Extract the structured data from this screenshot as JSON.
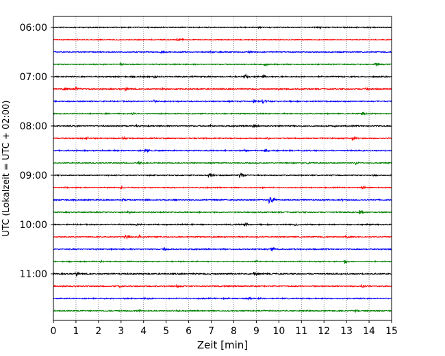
{
  "chart_data": {
    "type": "line",
    "subtype": "helicorder",
    "xlabel": "Zeit  [min]",
    "ylabel": "UTC (Lokalzeit = UTC + 02:00)",
    "xlim": [
      0,
      15
    ],
    "x_ticks": [
      "0",
      "1",
      "2",
      "3",
      "4",
      "5",
      "6",
      "7",
      "8",
      "9",
      "10",
      "11",
      "12",
      "13",
      "14",
      "15"
    ],
    "y_tick_labels": [
      "06:00",
      "07:00",
      "08:00",
      "09:00",
      "10:00",
      "11:00"
    ],
    "trace_minutes_per_line": 15,
    "start_time": "06:00",
    "trace_colors": [
      "#000000",
      "#ff0000",
      "#0000ff",
      "#008000"
    ],
    "grid": "vertical dotted at each minute",
    "traces": [
      {
        "time": "06:00",
        "color": "#000000",
        "amplitude": 0.8,
        "events": [
          {
            "x": 9.1,
            "amp": 2.5
          },
          {
            "x": 11.8,
            "amp": 2
          }
        ]
      },
      {
        "time": "06:15",
        "color": "#ff0000",
        "amplitude": 0.7,
        "events": [
          {
            "x": 5.5,
            "amp": 4.5
          }
        ]
      },
      {
        "time": "06:30",
        "color": "#0000ff",
        "amplitude": 0.8,
        "events": [
          {
            "x": 4.8,
            "amp": 2.5
          },
          {
            "x": 7,
            "amp": 2.2
          },
          {
            "x": 8.7,
            "amp": 2.5
          }
        ]
      },
      {
        "time": "06:45",
        "color": "#008000",
        "amplitude": 0.8,
        "events": [
          {
            "x": 3.0,
            "amp": 3
          },
          {
            "x": 9.4,
            "amp": 2.5
          },
          {
            "x": 14.3,
            "amp": 3.5
          }
        ]
      },
      {
        "time": "07:00",
        "color": "#000000",
        "amplitude": 1.0,
        "events": [
          {
            "x": 4.5,
            "amp": 2.5
          },
          {
            "x": 8.5,
            "amp": 3.5
          },
          {
            "x": 9.3,
            "amp": 3
          }
        ]
      },
      {
        "time": "07:15",
        "color": "#ff0000",
        "amplitude": 0.9,
        "events": [
          {
            "x": 0.5,
            "amp": 4
          },
          {
            "x": 1.0,
            "amp": 3.5
          },
          {
            "x": 3.2,
            "amp": 3
          },
          {
            "x": 4.8,
            "amp": 2.5
          },
          {
            "x": 10.0,
            "amp": 2
          },
          {
            "x": 13.9,
            "amp": 3
          }
        ]
      },
      {
        "time": "07:30",
        "color": "#0000ff",
        "amplitude": 0.9,
        "events": [
          {
            "x": 4.5,
            "amp": 2.5
          },
          {
            "x": 8.9,
            "amp": 3.5
          },
          {
            "x": 9.3,
            "amp": 3
          }
        ]
      },
      {
        "time": "07:45",
        "color": "#008000",
        "amplitude": 0.8,
        "events": [
          {
            "x": 3.5,
            "amp": 2.5
          },
          {
            "x": 13.7,
            "amp": 3
          }
        ]
      },
      {
        "time": "08:00",
        "color": "#000000",
        "amplitude": 0.9,
        "events": [
          {
            "x": 3.7,
            "amp": 2
          },
          {
            "x": 7.0,
            "amp": 2
          },
          {
            "x": 8.9,
            "amp": 4
          },
          {
            "x": 12.5,
            "amp": 2
          }
        ]
      },
      {
        "time": "08:15",
        "color": "#ff0000",
        "amplitude": 0.9,
        "events": [
          {
            "x": 1.5,
            "amp": 3
          },
          {
            "x": 3.1,
            "amp": 2.5
          },
          {
            "x": 9.5,
            "amp": 2.5
          },
          {
            "x": 13.3,
            "amp": 3
          }
        ]
      },
      {
        "time": "08:30",
        "color": "#0000ff",
        "amplitude": 0.9,
        "events": [
          {
            "x": 4.1,
            "amp": 3.5
          },
          {
            "x": 8.5,
            "amp": 3
          },
          {
            "x": 9.4,
            "amp": 3
          }
        ]
      },
      {
        "time": "08:45",
        "color": "#008000",
        "amplitude": 0.8,
        "events": [
          {
            "x": 3.8,
            "amp": 3
          },
          {
            "x": 11.3,
            "amp": 2.5
          },
          {
            "x": 13.4,
            "amp": 3.5
          }
        ]
      },
      {
        "time": "09:00",
        "color": "#000000",
        "amplitude": 0.8,
        "events": [
          {
            "x": 6.9,
            "amp": 5
          },
          {
            "x": 8.3,
            "amp": 5
          },
          {
            "x": 14.2,
            "amp": 2.5
          }
        ]
      },
      {
        "time": "09:15",
        "color": "#ff0000",
        "amplitude": 0.8,
        "events": [
          {
            "x": 0.5,
            "amp": 2.5
          },
          {
            "x": 3.0,
            "amp": 3
          },
          {
            "x": 9.3,
            "amp": 2
          },
          {
            "x": 13.7,
            "amp": 3
          }
        ]
      },
      {
        "time": "09:30",
        "color": "#0000ff",
        "amplitude": 0.9,
        "events": [
          {
            "x": 3.1,
            "amp": 2
          },
          {
            "x": 9.6,
            "amp": 8
          },
          {
            "x": 12.8,
            "amp": 2
          }
        ]
      },
      {
        "time": "09:45",
        "color": "#008000",
        "amplitude": 0.9,
        "events": [
          {
            "x": 3.3,
            "amp": 2.5
          },
          {
            "x": 4.9,
            "amp": 2
          },
          {
            "x": 13.6,
            "amp": 3.5
          }
        ]
      },
      {
        "time": "10:00",
        "color": "#000000",
        "amplitude": 0.9,
        "events": [
          {
            "x": 3.7,
            "amp": 2
          },
          {
            "x": 8.5,
            "amp": 3.5
          },
          {
            "x": 10.7,
            "amp": 3
          }
        ]
      },
      {
        "time": "10:15",
        "color": "#ff0000",
        "amplitude": 0.8,
        "events": [
          {
            "x": 3.2,
            "amp": 5
          },
          {
            "x": 3.8,
            "amp": 3
          },
          {
            "x": 13.0,
            "amp": 3.5
          }
        ]
      },
      {
        "time": "10:30",
        "color": "#0000ff",
        "amplitude": 0.9,
        "events": [
          {
            "x": 4.9,
            "amp": 3
          },
          {
            "x": 9.7,
            "amp": 3
          }
        ]
      },
      {
        "time": "10:45",
        "color": "#008000",
        "amplitude": 0.8,
        "events": [
          {
            "x": 2.1,
            "amp": 2
          },
          {
            "x": 9.0,
            "amp": 2.5
          },
          {
            "x": 12.9,
            "amp": 4
          }
        ]
      },
      {
        "time": "11:00",
        "color": "#000000",
        "amplitude": 1.0,
        "events": [
          {
            "x": 1.0,
            "amp": 3.5
          },
          {
            "x": 3.5,
            "amp": 2
          },
          {
            "x": 8.9,
            "amp": 3.5
          }
        ]
      },
      {
        "time": "11:15",
        "color": "#ff0000",
        "amplitude": 0.9,
        "events": [
          {
            "x": 2.9,
            "amp": 3
          },
          {
            "x": 5.5,
            "amp": 3
          },
          {
            "x": 13.7,
            "amp": 3.5
          }
        ]
      },
      {
        "time": "11:30",
        "color": "#0000ff",
        "amplitude": 0.9,
        "events": [
          {
            "x": 4.1,
            "amp": 3
          },
          {
            "x": 8.7,
            "amp": 3
          },
          {
            "x": 9.1,
            "amp": 2.5
          }
        ]
      },
      {
        "time": "11:45",
        "color": "#008000",
        "amplitude": 0.9,
        "events": [
          {
            "x": 3.8,
            "amp": 2.5
          },
          {
            "x": 5.5,
            "amp": 2.5
          },
          {
            "x": 13.4,
            "amp": 3
          }
        ]
      }
    ]
  }
}
